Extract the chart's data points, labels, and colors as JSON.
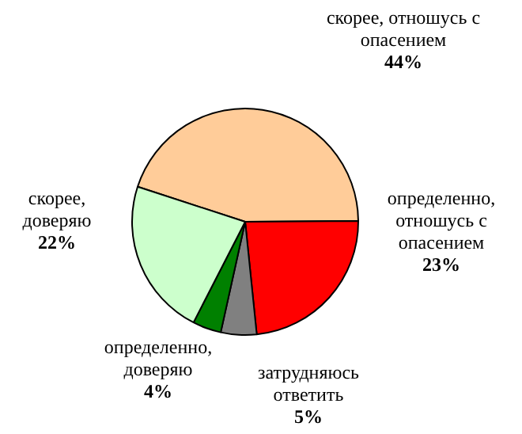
{
  "chart_data": {
    "type": "pie",
    "categories": [
      "скорее, отношусь с опасением",
      "определенно, отношусь с опасением",
      "затрудняюсь ответить",
      "определенно, доверяю",
      "скорее, доверяю"
    ],
    "values": [
      44,
      23,
      5,
      4,
      22
    ],
    "value_labels": [
      "44%",
      "23%",
      "5%",
      "4%",
      "22%"
    ],
    "colors": [
      "#ffcc99",
      "#ff0000",
      "#808080",
      "#008000",
      "#ccffcc"
    ],
    "legend": false
  }
}
